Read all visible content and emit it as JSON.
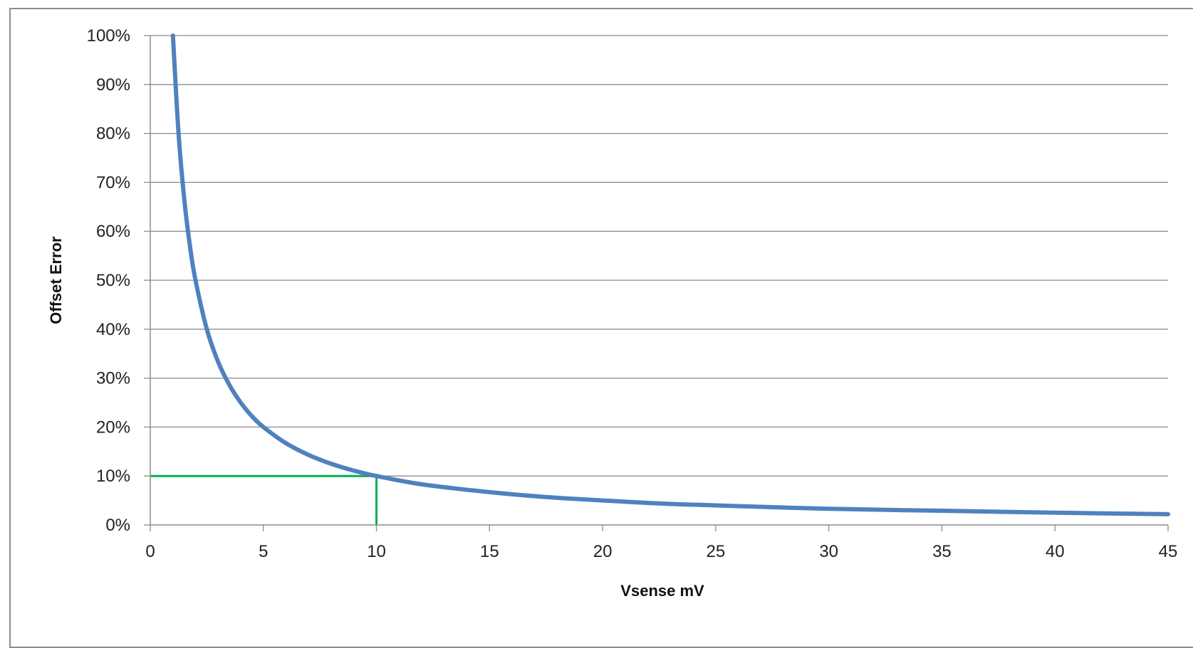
{
  "chart_data": {
    "type": "line",
    "title": "",
    "xlabel": "Vsense mV",
    "ylabel": "Offset Error",
    "xlim": [
      0,
      45
    ],
    "ylim": [
      0,
      1
    ],
    "x_ticks": [
      0,
      5,
      10,
      15,
      20,
      25,
      30,
      35,
      40,
      45
    ],
    "x_tick_labels": [
      "0",
      "5",
      "10",
      "15",
      "20",
      "25",
      "30",
      "35",
      "40",
      "45"
    ],
    "y_ticks": [
      0,
      0.1,
      0.2,
      0.3,
      0.4,
      0.5,
      0.6,
      0.7,
      0.8,
      0.9,
      1.0
    ],
    "y_tick_labels": [
      "0%",
      "10%",
      "20%",
      "30%",
      "40%",
      "50%",
      "60%",
      "70%",
      "80%",
      "90%",
      "100%"
    ],
    "grid": "horizontal",
    "legend": "none",
    "series": [
      {
        "color": "#4f81bd",
        "x": [
          1,
          1.25,
          1.5,
          1.75,
          2,
          2.5,
          3,
          3.5,
          4,
          4.5,
          5,
          6,
          7,
          8,
          9,
          10,
          12,
          15,
          17.5,
          20,
          22.5,
          25,
          30,
          35,
          40,
          45
        ],
        "y": [
          1.0,
          0.8,
          0.667,
          0.571,
          0.5,
          0.4,
          0.333,
          0.286,
          0.25,
          0.222,
          0.2,
          0.167,
          0.143,
          0.125,
          0.111,
          0.1,
          0.083,
          0.067,
          0.057,
          0.05,
          0.044,
          0.04,
          0.033,
          0.029,
          0.025,
          0.022
        ]
      }
    ],
    "annotations": [
      {
        "type": "marker-lines",
        "color": "#00b050",
        "x": 10,
        "y": 0.1
      }
    ]
  }
}
